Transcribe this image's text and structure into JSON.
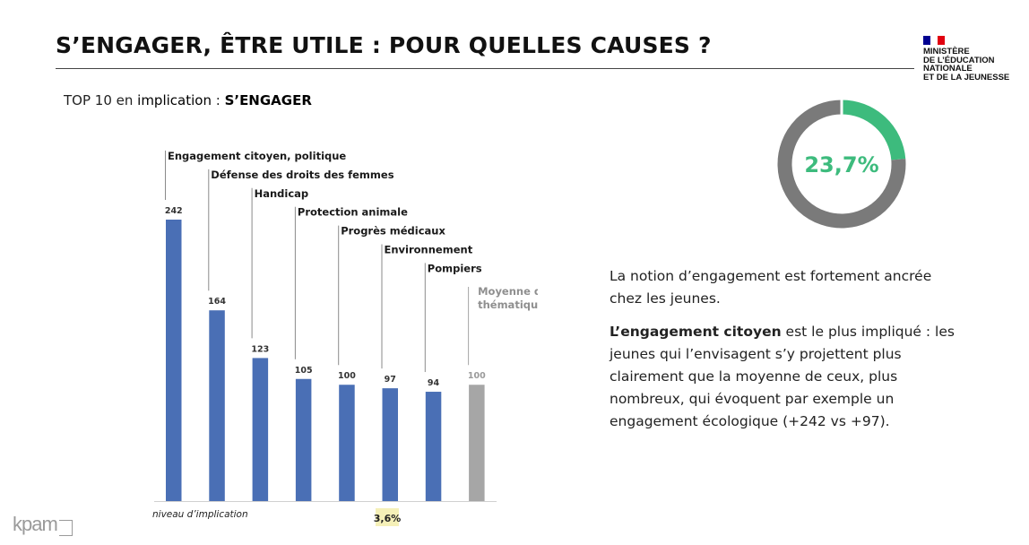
{
  "page": {
    "title": "S’ENGAGER, ÊTRE UTILE : POUR QUELLES CAUSES ?",
    "subtitle": {
      "prefix": "TOP 10 en ",
      "emph": "implication",
      "sep": " : ",
      "bold": "S’ENGAGER"
    },
    "logo_lines": [
      "MINISTÈRE",
      "DE L’ÉDUCATION",
      "NATIONALE",
      "ET DE LA JEUNESSE"
    ],
    "flag_colors": [
      "#000091",
      "#ffffff",
      "#e1000f"
    ],
    "brand": "kpam"
  },
  "chart_data": [
    {
      "type": "bar",
      "categories": [
        "Engagement citoyen, politique",
        "Défense des droits des femmes",
        "Handicap",
        "Protection animale",
        "Progrès médicaux",
        "Environnement",
        "Pompiers",
        "Moyenne des thématiques"
      ],
      "values": [
        242,
        164,
        123,
        105,
        100,
        97,
        94,
        100
      ],
      "data_labels": [
        "242",
        "164",
        "123",
        "105",
        "100",
        "97",
        "94",
        "100"
      ],
      "colors": [
        "#4a6fb5",
        "#4a6fb5",
        "#4a6fb5",
        "#4a6fb5",
        "#4a6fb5",
        "#4a6fb5",
        "#4a6fb5",
        "#a6a6a6"
      ],
      "xlabel": "niveau d’implication",
      "ylim": [
        0,
        242
      ],
      "footnote": "3,6%",
      "footnote_bg": "#f5f0b8"
    },
    {
      "type": "pie",
      "donut": true,
      "values": [
        23.7,
        76.3
      ],
      "colors": [
        "#3dbb7d",
        "#7a7a7a"
      ],
      "center_label": "23,7%",
      "center_color": "#3dbb7d"
    }
  ],
  "text": {
    "p1": "La notion d’engagement est fortement ancrée chez les jeunes.",
    "p2_bold": "L’engagement citoyen",
    "p2_rest": " est le plus impliqué : les jeunes qui l’envisagent s’y projettent plus clairement que la moyenne de ceux, plus nombreux, qui évoquent par exemple un engagement écologique (+242 vs +97)."
  }
}
